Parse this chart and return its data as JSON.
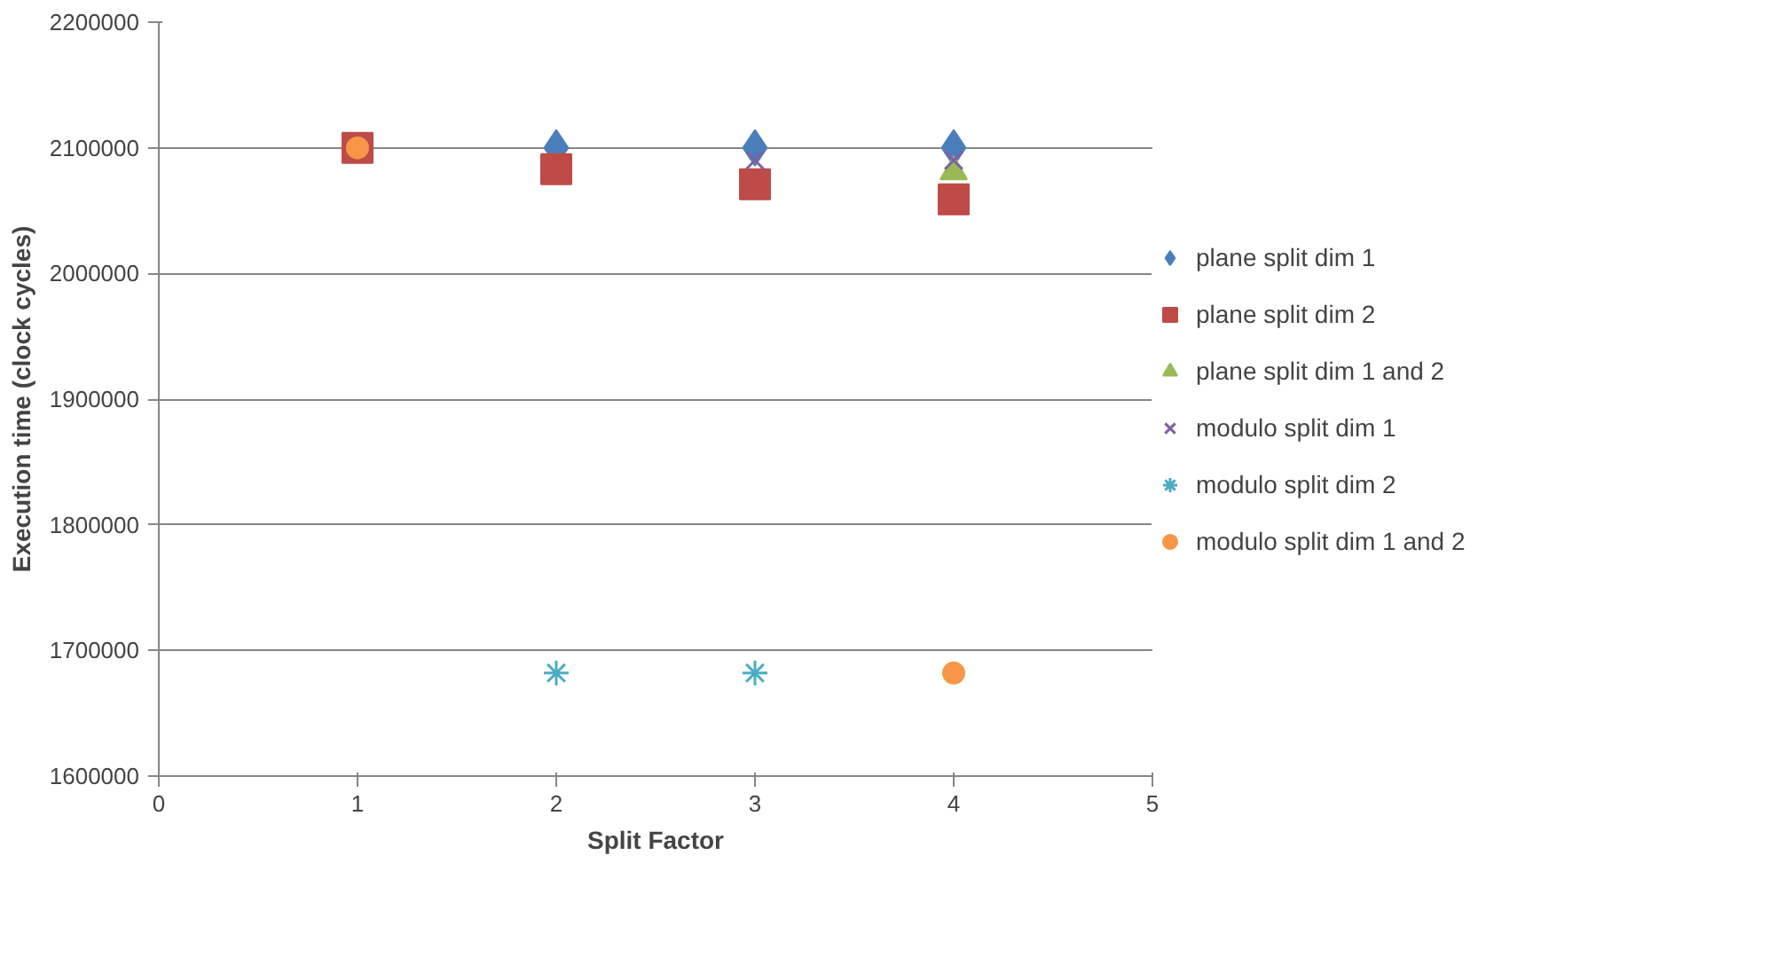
{
  "chart_data": {
    "type": "scatter",
    "xlabel": "Split Factor",
    "ylabel": "Execution time (clock cycles)",
    "xlim": [
      0,
      5
    ],
    "xticks": [
      0,
      1,
      2,
      3,
      4,
      5
    ],
    "ylim": [
      1600000,
      2200000
    ],
    "yticks": [
      1600000,
      1700000,
      1800000,
      1900000,
      2000000,
      2100000,
      2200000
    ],
    "grid": "y",
    "legend": "right",
    "series": [
      {
        "name": "plane split dim 1",
        "color": "#4a7ebb",
        "marker": "diamond",
        "x": [
          2,
          3,
          4
        ],
        "values": [
          2100000,
          2100000,
          2100000
        ]
      },
      {
        "name": "plane split dim 2",
        "color": "#be4b48",
        "marker": "square",
        "x": [
          1,
          2,
          3,
          4
        ],
        "values": [
          2100000,
          2083000,
          2071000,
          2059000
        ]
      },
      {
        "name": "plane split dim 1 and 2",
        "color": "#98b954",
        "marker": "triangle",
        "x": [
          4
        ],
        "values": [
          2081000
        ]
      },
      {
        "name": "modulo split dim 1",
        "color": "#7d60a0",
        "marker": "cross",
        "x": [
          3,
          4
        ],
        "values": [
          2090000,
          2090000
        ]
      },
      {
        "name": "modulo split dim 2",
        "color": "#4bacc6",
        "x": [
          2,
          3
        ],
        "values": [
          1682000,
          1682000
        ]
      },
      {
        "name": "modulo split dim 1 and 2",
        "color": "#f79646",
        "marker": "circle",
        "x": [
          1,
          4
        ],
        "values": [
          2100000,
          1682000
        ]
      }
    ]
  }
}
